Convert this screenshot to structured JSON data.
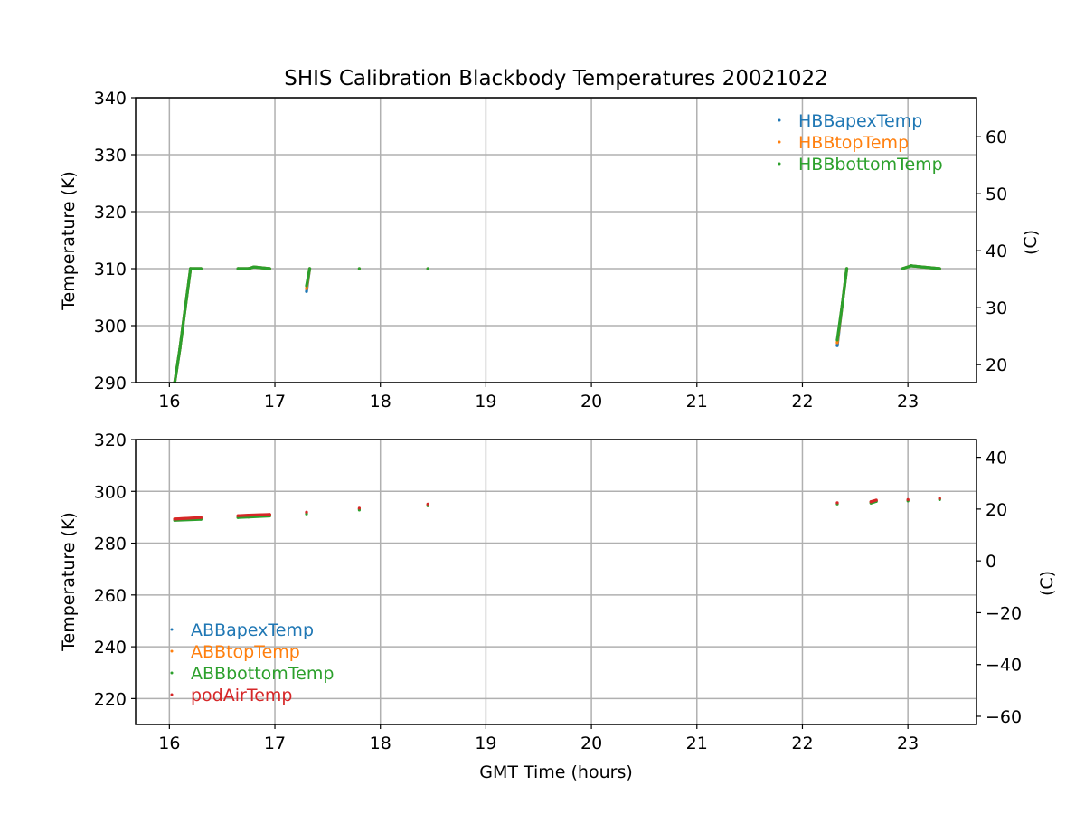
{
  "figure": {
    "title": "SHIS Calibration Blackbody Temperatures 20021022"
  },
  "chart_data": [
    {
      "type": "scatter",
      "panel": "top",
      "title": "SHIS Calibration Blackbody Temperatures 20021022",
      "xlabel": "",
      "ylabel": "Temperature (K)",
      "y2label": "(C)",
      "xlim": [
        15.68,
        23.65
      ],
      "ylim": [
        290,
        340
      ],
      "y2lim": [
        16.85,
        66.85
      ],
      "xticks": [
        16,
        17,
        18,
        19,
        20,
        21,
        22,
        23
      ],
      "yticks": [
        290,
        300,
        310,
        320,
        330,
        340
      ],
      "y2ticks": [
        20,
        30,
        40,
        50,
        60
      ],
      "grid": true,
      "legend_position": "top-right",
      "series": [
        {
          "name": "HBBapexTemp",
          "color": "#1f77b4",
          "points": [
            [
              16.05,
              290
            ],
            [
              16.1,
              296
            ],
            [
              16.15,
              303
            ],
            [
              16.2,
              310
            ],
            [
              16.3,
              310
            ],
            [
              16.65,
              310
            ],
            [
              16.75,
              310
            ],
            [
              16.8,
              310.3
            ],
            [
              16.95,
              310
            ],
            [
              17.3,
              306
            ],
            [
              17.33,
              310
            ],
            [
              17.8,
              310
            ],
            [
              18.45,
              310
            ],
            [
              22.33,
              296.5
            ],
            [
              22.38,
              304
            ],
            [
              22.42,
              310
            ],
            [
              22.95,
              310
            ],
            [
              23.03,
              310.5
            ],
            [
              23.3,
              310
            ]
          ]
        },
        {
          "name": "HBBtopTemp",
          "color": "#ff7f0e",
          "points": [
            [
              16.05,
              290
            ],
            [
              16.1,
              296
            ],
            [
              16.15,
              303
            ],
            [
              16.2,
              310
            ],
            [
              16.3,
              310
            ],
            [
              16.65,
              310
            ],
            [
              16.75,
              310
            ],
            [
              16.8,
              310.3
            ],
            [
              16.95,
              310
            ],
            [
              17.3,
              306.5
            ],
            [
              17.33,
              310
            ],
            [
              17.8,
              310
            ],
            [
              18.45,
              310
            ],
            [
              22.33,
              297
            ],
            [
              22.38,
              304
            ],
            [
              22.42,
              310
            ],
            [
              22.95,
              310
            ],
            [
              23.03,
              310.5
            ],
            [
              23.3,
              310
            ]
          ]
        },
        {
          "name": "HBBbottomTemp",
          "color": "#2ca02c",
          "points": [
            [
              16.05,
              290
            ],
            [
              16.1,
              296
            ],
            [
              16.15,
              303
            ],
            [
              16.2,
              310
            ],
            [
              16.3,
              310
            ],
            [
              16.65,
              310
            ],
            [
              16.75,
              310
            ],
            [
              16.8,
              310.3
            ],
            [
              16.95,
              310
            ],
            [
              17.3,
              307
            ],
            [
              17.33,
              310
            ],
            [
              17.8,
              310
            ],
            [
              18.45,
              310
            ],
            [
              22.33,
              297.5
            ],
            [
              22.38,
              304
            ],
            [
              22.42,
              310
            ],
            [
              22.95,
              310
            ],
            [
              23.03,
              310.5
            ],
            [
              23.3,
              310
            ]
          ]
        }
      ]
    },
    {
      "type": "scatter",
      "panel": "bottom",
      "title": "",
      "xlabel": "GMT Time (hours)",
      "ylabel": "Temperature (K)",
      "y2label": "(C)",
      "xlim": [
        15.68,
        23.65
      ],
      "ylim": [
        210,
        320
      ],
      "y2lim": [
        -63.15,
        46.85
      ],
      "xticks": [
        16,
        17,
        18,
        19,
        20,
        21,
        22,
        23
      ],
      "yticks": [
        220,
        240,
        260,
        280,
        300,
        320
      ],
      "y2ticks": [
        -60,
        -40,
        -20,
        0,
        20,
        40
      ],
      "grid": true,
      "legend_position": "lower-left",
      "series": [
        {
          "name": "ABBapexTemp",
          "color": "#1f77b4",
          "points": [
            [
              16.05,
              289.2
            ],
            [
              16.3,
              289.7
            ],
            [
              16.65,
              290.4
            ],
            [
              16.75,
              290.6
            ],
            [
              16.95,
              290.9
            ],
            [
              17.3,
              291.7
            ],
            [
              17.8,
              293.2
            ],
            [
              18.45,
              294.8
            ],
            [
              22.33,
              295.4
            ],
            [
              22.65,
              295.8
            ],
            [
              22.7,
              296.4
            ],
            [
              23.0,
              296.6
            ],
            [
              23.3,
              297.1
            ]
          ]
        },
        {
          "name": "ABBtopTemp",
          "color": "#ff7f0e",
          "points": [
            [
              16.05,
              289.3
            ],
            [
              16.3,
              289.8
            ],
            [
              16.65,
              290.5
            ],
            [
              16.75,
              290.7
            ],
            [
              16.95,
              291.0
            ],
            [
              17.3,
              291.8
            ],
            [
              17.8,
              293.3
            ],
            [
              18.45,
              294.9
            ],
            [
              22.33,
              295.5
            ],
            [
              22.65,
              295.9
            ],
            [
              22.7,
              296.5
            ],
            [
              23.0,
              296.7
            ],
            [
              23.3,
              297.2
            ]
          ]
        },
        {
          "name": "ABBbottomTemp",
          "color": "#2ca02c",
          "points": [
            [
              16.05,
              288.8
            ],
            [
              16.3,
              289.2
            ],
            [
              16.65,
              289.9
            ],
            [
              16.75,
              290.1
            ],
            [
              16.95,
              290.5
            ],
            [
              17.3,
              291.3
            ],
            [
              17.8,
              292.8
            ],
            [
              18.45,
              294.4
            ],
            [
              22.33,
              295.1
            ],
            [
              22.65,
              295.5
            ],
            [
              22.7,
              296.1
            ],
            [
              23.0,
              296.3
            ],
            [
              23.3,
              296.8
            ]
          ]
        },
        {
          "name": "podAirTemp",
          "color": "#d62728",
          "points": [
            [
              16.05,
              289.3
            ],
            [
              16.3,
              289.9
            ],
            [
              16.65,
              290.6
            ],
            [
              16.75,
              290.8
            ],
            [
              16.95,
              291.1
            ],
            [
              17.3,
              292.0
            ],
            [
              17.8,
              293.5
            ],
            [
              18.45,
              295.1
            ],
            [
              22.33,
              295.6
            ],
            [
              22.65,
              296.0
            ],
            [
              22.7,
              296.6
            ],
            [
              23.0,
              296.8
            ],
            [
              23.3,
              297.3
            ]
          ]
        }
      ]
    }
  ]
}
